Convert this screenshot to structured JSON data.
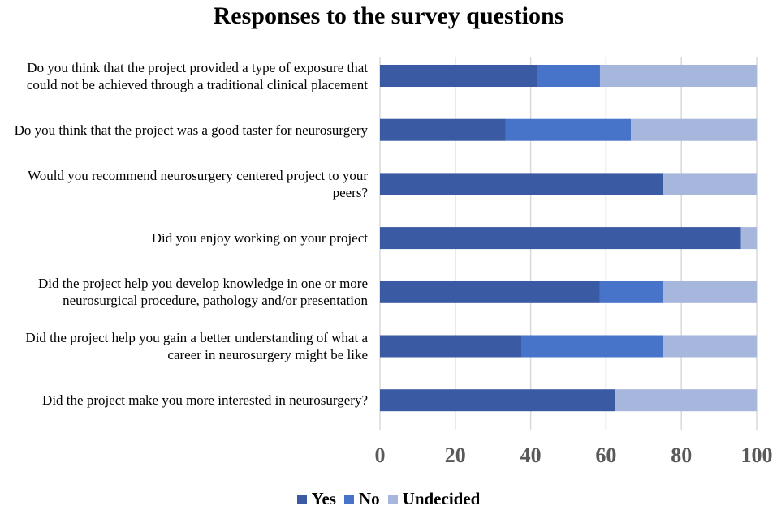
{
  "chart_data": {
    "type": "bar",
    "orientation": "horizontal",
    "stacked": true,
    "title": "Responses to the survey questions",
    "categories": [
      [
        "Do you think that the project provided a type of exposure that",
        "could not be achieved through a traditional clinical placement"
      ],
      [
        "Do you think that the project was a good taster for neurosurgery"
      ],
      [
        "Would you recommend neurosurgery centered project to your",
        "peers?"
      ],
      [
        "Did you enjoy working on your project"
      ],
      [
        "Did the project help you develop knowledge in one or more",
        "neurosurgical procedure, pathology and/or presentation"
      ],
      [
        "Did the project help you gain a better understanding of what a",
        "career in neurosurgery might be like"
      ],
      [
        "Did the project make you more interested in neurosurgery?"
      ]
    ],
    "series": [
      {
        "name": "Yes",
        "color": "#3a5ba3",
        "values": [
          41.7,
          33.3,
          75,
          95.8,
          58.3,
          37.5,
          62.5
        ]
      },
      {
        "name": "No",
        "color": "#4774c8",
        "values": [
          16.7,
          33.3,
          0,
          0,
          16.7,
          37.5,
          0
        ]
      },
      {
        "name": "Undecided",
        "color": "#a7b6dc",
        "values": [
          41.6,
          33.4,
          25,
          4.2,
          25,
          25,
          37.5
        ]
      }
    ],
    "xlim": [
      0,
      100
    ],
    "xticks": [
      "0",
      "20",
      "40",
      "60",
      "80",
      "100"
    ],
    "grid": true,
    "legend": "bottom"
  }
}
